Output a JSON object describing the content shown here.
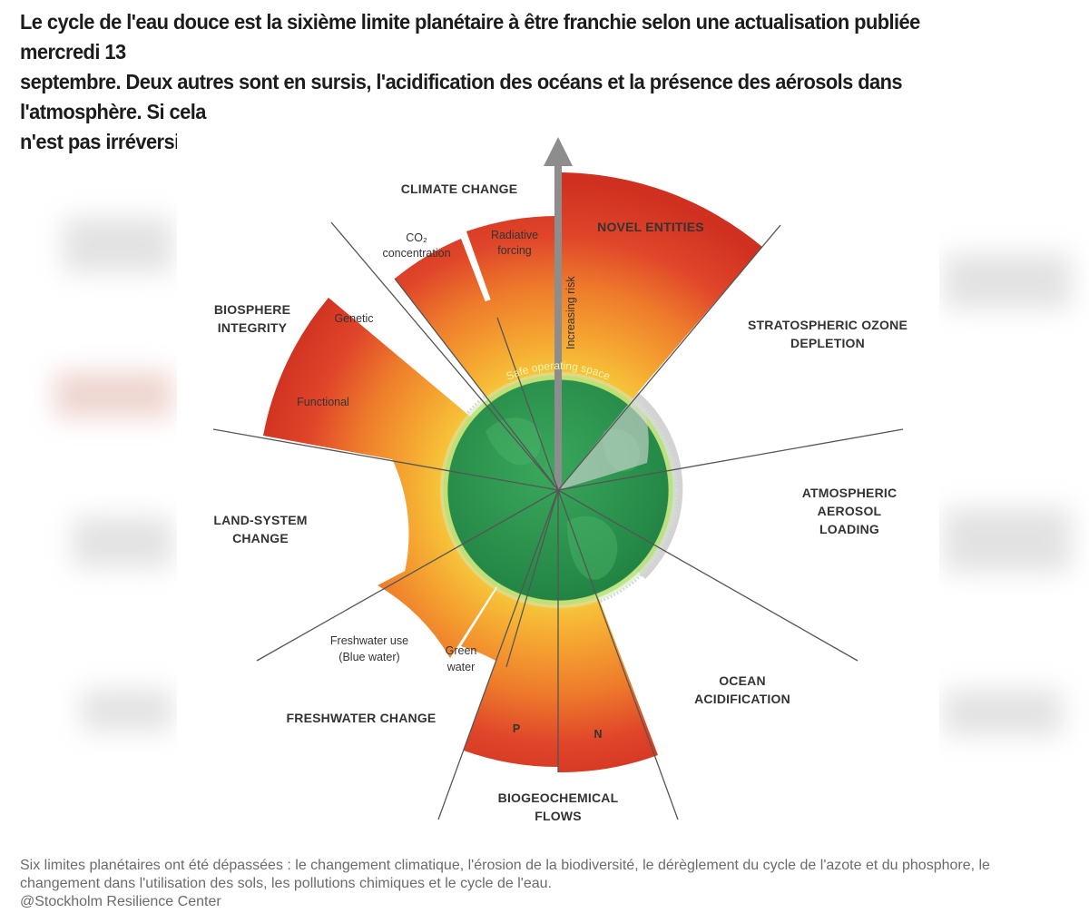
{
  "headline": {
    "line1": "Le cycle de l'eau douce est la sixième limite planétaire à être franchie selon une actualisation publiée mercredi 13",
    "line2": "septembre. Deux autres sont en sursis, l'acidification des océans et la présence des aérosols dans l'atmosphère. Si cela",
    "line3": "n'est pas irréversible, il y a urgence à inverser la tendance."
  },
  "diagram": {
    "boundaries": {
      "climate": "CLIMATE CHANGE",
      "novel": "NOVEL ENTITIES",
      "ozone_1": "STRATOSPHERIC OZONE",
      "ozone_2": "DEPLETION",
      "aerosol_1": "ATMOSPHERIC",
      "aerosol_2": "AEROSOL",
      "aerosol_3": "LOADING",
      "ocean_1": "OCEAN",
      "ocean_2": "ACIDIFICATION",
      "biogeo_1": "BIOGEOCHEMICAL",
      "biogeo_2": "FLOWS",
      "freshwater": "FRESHWATER CHANGE",
      "land_1": "LAND-SYSTEM",
      "land_2": "CHANGE",
      "bio_1": "BIOSPHERE",
      "bio_2": "INTEGRITY"
    },
    "sub_labels": {
      "co2_1": "CO₂",
      "co2_2": "concentration",
      "rf_1": "Radiative",
      "rf_2": "forcing",
      "genetic": "Genetic",
      "functional": "Functional",
      "blue_1": "Freshwater use",
      "blue_2": "(Blue water)",
      "green_1": "Green",
      "green_2": "water",
      "p": "P",
      "n": "N"
    },
    "arrow_label": "Increasing risk",
    "safe_space": "Safe operating space",
    "colors": {
      "safe": "#2e9a52",
      "zone_yellow": "#f5c73c",
      "zone_orange": "#f08a2e",
      "zone_red": "#d83a25",
      "not_quantified": "#cfcfcf"
    }
  },
  "caption": {
    "line1": "Six limites planétaires ont été dépassées : le changement climatique, l'érosion de la biodiversité, le dérèglement du cycle de l'azote et du phosphore, le",
    "line2": "changement dans l'utilisation des sols, les pollutions chimiques et le cycle de l'eau.",
    "credit": "@Stockholm Resilience Center"
  }
}
